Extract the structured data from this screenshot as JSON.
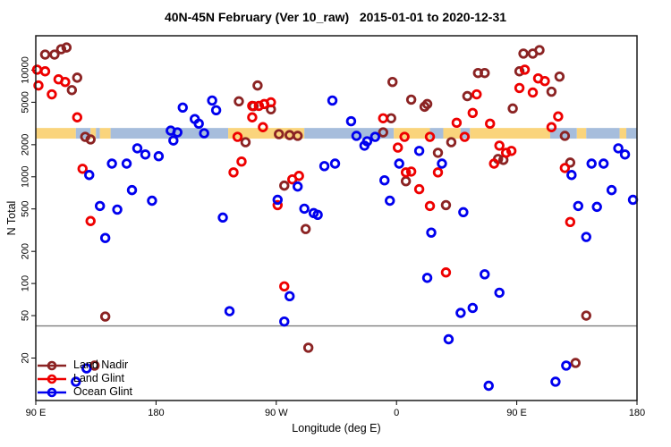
{
  "title": "40N-45N February (Ver 10_raw)   2015-01-01 to 2020-12-31",
  "chart_data": {
    "type": "scatter",
    "title": "40N-45N February (Ver 10_raw)   2015-01-01 to 2020-12-31",
    "xlabel": "Longitude (deg E)",
    "ylabel": "N Total",
    "grid": false,
    "legend_position": "bottom-left",
    "x_axis": {
      "range_deg": [
        0,
        450
      ],
      "ticks_deg": [
        0,
        90,
        180,
        270,
        360,
        450
      ],
      "tick_labels": [
        "90 E",
        "180",
        "90 W",
        "0",
        "90 E",
        "180"
      ]
    },
    "y_axis": {
      "scale": "log",
      "range": [
        8,
        21000
      ],
      "ticks": [
        20,
        50,
        100,
        200,
        500,
        1000,
        2000,
        5000,
        10000
      ]
    },
    "reference_line_n": 40,
    "land_ocean_band": {
      "n_range": [
        2280,
        2870
      ],
      "land_color": "#FAD47C",
      "ocean_color": "#A6BDDC",
      "segments": [
        {
          "start": 0,
          "end": 30,
          "surface": "land"
        },
        {
          "start": 30,
          "end": 41,
          "surface": "ocean"
        },
        {
          "start": 41,
          "end": 45,
          "surface": "land"
        },
        {
          "start": 45,
          "end": 48,
          "surface": "ocean"
        },
        {
          "start": 48,
          "end": 56,
          "surface": "land"
        },
        {
          "start": 56,
          "end": 144,
          "surface": "ocean"
        },
        {
          "start": 144,
          "end": 201,
          "surface": "land"
        },
        {
          "start": 201,
          "end": 268,
          "surface": "ocean"
        },
        {
          "start": 268,
          "end": 295,
          "surface": "land"
        },
        {
          "start": 295,
          "end": 305,
          "surface": "ocean"
        },
        {
          "start": 305,
          "end": 318,
          "surface": "land"
        },
        {
          "start": 318,
          "end": 325,
          "surface": "ocean"
        },
        {
          "start": 325,
          "end": 385,
          "surface": "land"
        },
        {
          "start": 385,
          "end": 405,
          "surface": "ocean"
        },
        {
          "start": 405,
          "end": 412,
          "surface": "land"
        },
        {
          "start": 412,
          "end": 437,
          "surface": "ocean"
        },
        {
          "start": 437,
          "end": 442,
          "surface": "land"
        },
        {
          "start": 442,
          "end": 450,
          "surface": "ocean"
        }
      ]
    },
    "series": [
      {
        "name": "Land Nadir",
        "color": "#8B2323",
        "points": [
          [
            7,
            14000
          ],
          [
            14,
            14000
          ],
          [
            19,
            15700
          ],
          [
            23,
            16300
          ],
          [
            31,
            8500
          ],
          [
            27,
            6500
          ],
          [
            37,
            2370
          ],
          [
            41,
            2240
          ],
          [
            52,
            49
          ],
          [
            44,
            17
          ],
          [
            152,
            5100
          ],
          [
            163,
            4600
          ],
          [
            176,
            4290
          ],
          [
            166,
            7180
          ],
          [
            182,
            2510
          ],
          [
            190,
            2460
          ],
          [
            196,
            2420
          ],
          [
            157,
            2110
          ],
          [
            202,
            324
          ],
          [
            204,
            25
          ],
          [
            266,
            3540
          ],
          [
            260,
            2610
          ],
          [
            267,
            7750
          ],
          [
            277,
            910
          ],
          [
            281,
            5290
          ],
          [
            291,
            4540
          ],
          [
            293,
            4810
          ],
          [
            301,
            1680
          ],
          [
            307,
            543
          ],
          [
            311,
            2110
          ],
          [
            323,
            5710
          ],
          [
            331,
            9400
          ],
          [
            336,
            9400
          ],
          [
            346,
            1470
          ],
          [
            350,
            1440
          ],
          [
            357,
            4370
          ],
          [
            362,
            9750
          ],
          [
            365,
            14300
          ],
          [
            372,
            14300
          ],
          [
            377,
            15400
          ],
          [
            386,
            6280
          ],
          [
            392,
            8700
          ],
          [
            396,
            2420
          ],
          [
            400,
            1360
          ],
          [
            412,
            50
          ],
          [
            404,
            18
          ],
          [
            186,
            827
          ]
        ]
      },
      {
        "name": "Land Glint",
        "color": "#EE0000",
        "points": [
          [
            1,
            10100
          ],
          [
            7,
            9750
          ],
          [
            2,
            7180
          ],
          [
            12,
            5930
          ],
          [
            17,
            8200
          ],
          [
            22,
            7750
          ],
          [
            31,
            3610
          ],
          [
            41,
            385
          ],
          [
            35,
            1190
          ],
          [
            151,
            2370
          ],
          [
            162,
            4620
          ],
          [
            167,
            4620
          ],
          [
            171,
            4810
          ],
          [
            176,
            4990
          ],
          [
            162,
            3610
          ],
          [
            170,
            2920
          ],
          [
            154,
            1390
          ],
          [
            148,
            1100
          ],
          [
            181,
            543
          ],
          [
            192,
            946
          ],
          [
            197,
            1020
          ],
          [
            186,
            94
          ],
          [
            260,
            3540
          ],
          [
            271,
            1880
          ],
          [
            276,
            2370
          ],
          [
            277,
            1100
          ],
          [
            281,
            1120
          ],
          [
            287,
            766
          ],
          [
            295,
            2370
          ],
          [
            301,
            1100
          ],
          [
            295,
            533
          ],
          [
            321,
            2370
          ],
          [
            327,
            3970
          ],
          [
            330,
            5930
          ],
          [
            315,
            3210
          ],
          [
            340,
            3150
          ],
          [
            347,
            1960
          ],
          [
            352,
            1680
          ],
          [
            356,
            1750
          ],
          [
            343,
            1330
          ],
          [
            366,
            10100
          ],
          [
            376,
            8370
          ],
          [
            381,
            7900
          ],
          [
            372,
            6170
          ],
          [
            362,
            6800
          ],
          [
            391,
            3680
          ],
          [
            386,
            2920
          ],
          [
            396,
            1210
          ],
          [
            400,
            377
          ],
          [
            307,
            127
          ]
        ]
      },
      {
        "name": "Ocean Glint",
        "color": "#0000EE",
        "points": [
          [
            110,
            4460
          ],
          [
            132,
            5190
          ],
          [
            135,
            4210
          ],
          [
            119,
            3480
          ],
          [
            122,
            3150
          ],
          [
            101,
            2710
          ],
          [
            106,
            2610
          ],
          [
            103,
            2190
          ],
          [
            126,
            2560
          ],
          [
            222,
            5190
          ],
          [
            236,
            3320
          ],
          [
            240,
            2420
          ],
          [
            248,
            2150
          ],
          [
            254,
            2370
          ],
          [
            246,
            1960
          ],
          [
            272,
            1330
          ],
          [
            261,
            927
          ],
          [
            265,
            597
          ],
          [
            287,
            1750
          ],
          [
            304,
            1330
          ],
          [
            320,
            466
          ],
          [
            296,
            300
          ],
          [
            76,
            1850
          ],
          [
            82,
            1620
          ],
          [
            92,
            1560
          ],
          [
            57,
            1330
          ],
          [
            68,
            1330
          ],
          [
            40,
            1040
          ],
          [
            72,
            751
          ],
          [
            87,
            597
          ],
          [
            48,
            533
          ],
          [
            61,
            493
          ],
          [
            52,
            267
          ],
          [
            140,
            415
          ],
          [
            181,
            609
          ],
          [
            196,
            811
          ],
          [
            201,
            503
          ],
          [
            208,
            457
          ],
          [
            211,
            440
          ],
          [
            216,
            1260
          ],
          [
            224,
            1330
          ],
          [
            416,
            1330
          ],
          [
            425,
            1330
          ],
          [
            436,
            1850
          ],
          [
            441,
            1620
          ],
          [
            431,
            751
          ],
          [
            447,
            609
          ],
          [
            406,
            533
          ],
          [
            420,
            523
          ],
          [
            412,
            273
          ],
          [
            401,
            1040
          ],
          [
            293,
            113
          ],
          [
            336,
            122
          ],
          [
            347,
            82
          ],
          [
            318,
            53
          ],
          [
            327,
            59
          ],
          [
            190,
            76
          ],
          [
            145,
            55
          ],
          [
            186,
            44
          ],
          [
            309,
            30
          ],
          [
            339,
            11
          ],
          [
            389,
            12
          ],
          [
            397,
            17
          ],
          [
            38,
            16
          ],
          [
            30,
            12
          ]
        ]
      }
    ]
  }
}
